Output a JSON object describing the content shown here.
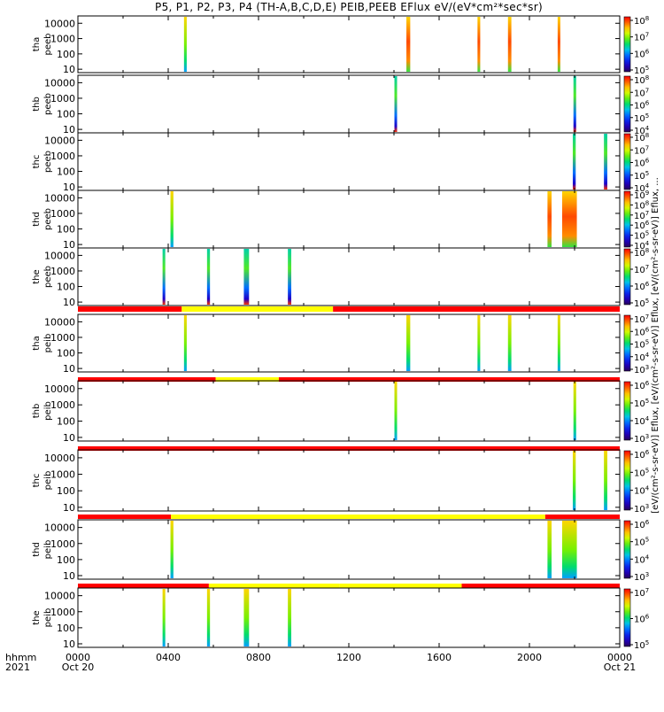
{
  "title": "P5, P1, P2, P3, P4 (TH-A,B,C,D,E) PEIB,PEEB EFlux eV/(eV*cm²*sec*sr)",
  "time_axis": {
    "label_top": "hhmm",
    "label_bottom": "2021",
    "ticks": [
      {
        "h": 0,
        "text": "0000",
        "sub": "Oct 20"
      },
      {
        "h": 4,
        "text": "0400",
        "sub": ""
      },
      {
        "h": 8,
        "text": "0800",
        "sub": ""
      },
      {
        "h": 12,
        "text": "1200",
        "sub": ""
      },
      {
        "h": 16,
        "text": "1600",
        "sub": ""
      },
      {
        "h": 20,
        "text": "2000",
        "sub": ""
      },
      {
        "h": 24,
        "text": "0000",
        "sub": "Oct 21"
      }
    ]
  },
  "colorbar_axis_title": "[eV/(cm²-s-sr-eV)] Eflux, [eV/(cm²-s-sr-eV)] Eflux, [eV/(cm²-s-sr-eV)] Eflux, ...",
  "chart_data": {
    "type": "heatmap",
    "x_unit": "hours since 2021-10-20 00:00",
    "xlim": [
      0,
      24
    ],
    "y_scale": "log",
    "ylim": [
      6,
      30000
    ],
    "yticks": [
      "10",
      "100",
      "1000",
      "10000"
    ],
    "panels": [
      {
        "id": "tha-peeb",
        "l1": "tha",
        "l2": "peeb",
        "cbar": [
          5,
          8
        ],
        "mode": [],
        "segments": [
          [
            4.7,
            4.82,
            "ion"
          ],
          [
            14.55,
            14.72,
            "hot"
          ],
          [
            17.7,
            17.82,
            "hot"
          ],
          [
            19.05,
            19.2,
            "hot"
          ],
          [
            21.25,
            21.35,
            "hot"
          ]
        ]
      },
      {
        "id": "thb-peeb",
        "l1": "thb",
        "l2": "peeb",
        "cbar": [
          4,
          8
        ],
        "mode": [],
        "segments": [
          [
            14.02,
            14.1,
            "band"
          ],
          [
            21.95,
            22.07,
            "band"
          ]
        ]
      },
      {
        "id": "thc-peeb",
        "l1": "thc",
        "l2": "peeb",
        "cbar": [
          4,
          8
        ],
        "mode": [],
        "segments": [
          [
            21.92,
            22.05,
            "band"
          ],
          [
            23.3,
            23.45,
            "band"
          ]
        ]
      },
      {
        "id": "thd-peeb",
        "l1": "thd",
        "l2": "peeb",
        "cbar": [
          4,
          9
        ],
        "mode": [],
        "segments": [
          [
            4.1,
            4.23,
            "ion"
          ],
          [
            20.8,
            20.98,
            "hot"
          ],
          [
            21.45,
            22.1,
            "hot"
          ]
        ]
      },
      {
        "id": "the-peeb",
        "l1": "the",
        "l2": "peeb",
        "cbar": [
          5,
          8
        ],
        "mode": [],
        "segments": [
          [
            3.75,
            3.87,
            "band"
          ],
          [
            5.72,
            5.85,
            "band"
          ],
          [
            7.35,
            7.58,
            "band"
          ],
          [
            9.3,
            9.45,
            "band"
          ]
        ]
      },
      {
        "id": "tha-peib",
        "l1": "tha",
        "l2": "peib",
        "cbar": [
          3,
          7
        ],
        "mode": [
          [
            0,
            4.6,
            "red"
          ],
          [
            4.6,
            11.3,
            "yellow"
          ],
          [
            11.3,
            24,
            "red"
          ]
        ],
        "segments": [
          [
            4.7,
            4.82,
            "ion"
          ],
          [
            14.55,
            14.72,
            "ion"
          ],
          [
            17.7,
            17.82,
            "ion"
          ],
          [
            19.05,
            19.2,
            "ion"
          ],
          [
            21.25,
            21.35,
            "ion"
          ]
        ]
      },
      {
        "id": "thb-peib",
        "l1": "thb",
        "l2": "peib",
        "cbar": [
          3,
          6
        ],
        "mode": [
          [
            0,
            6.1,
            "red"
          ],
          [
            6.1,
            8.9,
            "yellow"
          ],
          [
            8.9,
            24,
            "red"
          ]
        ],
        "segments": [
          [
            14.02,
            14.1,
            "ion"
          ],
          [
            21.95,
            22.07,
            "ion"
          ]
        ]
      },
      {
        "id": "thc-peib",
        "l1": "thc",
        "l2": "peib",
        "cbar": [
          3,
          6
        ],
        "mode": [
          [
            0,
            24,
            "red"
          ]
        ],
        "segments": [
          [
            21.92,
            22.05,
            "ion"
          ],
          [
            23.3,
            23.45,
            "ion"
          ]
        ]
      },
      {
        "id": "thd-peib",
        "l1": "thd",
        "l2": "peib",
        "cbar": [
          3,
          6
        ],
        "mode": [
          [
            0,
            4.12,
            "red"
          ],
          [
            4.12,
            20.7,
            "yellow"
          ],
          [
            20.7,
            24,
            "red"
          ]
        ],
        "segments": [
          [
            4.1,
            4.23,
            "ion"
          ],
          [
            20.8,
            20.98,
            "ion"
          ],
          [
            21.45,
            22.1,
            "ion"
          ]
        ]
      },
      {
        "id": "the-peib",
        "l1": "the",
        "l2": "peib",
        "cbar": [
          5,
          7
        ],
        "mode": [
          [
            0,
            5.8,
            "red"
          ],
          [
            5.8,
            11.6,
            "yellow"
          ],
          [
            11.6,
            17.0,
            "yellow"
          ],
          [
            17.0,
            24,
            "red"
          ]
        ],
        "segments": [
          [
            3.75,
            3.87,
            "ion"
          ],
          [
            5.72,
            5.85,
            "ion"
          ],
          [
            7.35,
            7.58,
            "ion"
          ],
          [
            9.3,
            9.45,
            "ion"
          ]
        ]
      }
    ]
  },
  "colors": {
    "mode_red": "#ff0000",
    "mode_yellow": "#ffff00",
    "frame": "#000000"
  }
}
